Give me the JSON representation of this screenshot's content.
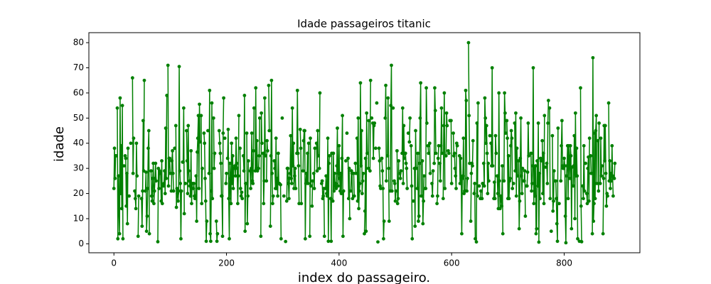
{
  "chart_data": {
    "type": "line",
    "title": "Idade passageiros titanic",
    "x_label": "index do passageiro.",
    "y_label": "idade",
    "color": "#008000",
    "markers": true,
    "xlim": [
      -44.5,
      934.5
    ],
    "xticks": [
      0,
      200,
      400,
      600,
      800
    ],
    "ylim": [
      -3.56,
      83.98
    ],
    "yticks": [
      0,
      10,
      20,
      30,
      40,
      50,
      60,
      70,
      80
    ],
    "values": [
      22,
      38,
      26,
      35,
      35,
      null,
      54,
      2,
      27,
      14,
      4,
      58,
      20,
      39,
      14,
      55,
      2,
      null,
      31,
      null,
      35,
      34,
      15,
      28,
      8,
      38,
      null,
      19,
      null,
      null,
      40,
      null,
      null,
      66,
      28,
      42,
      null,
      21,
      18,
      14,
      40,
      27,
      null,
      3,
      19,
      null,
      null,
      null,
      null,
      18,
      7,
      21,
      49,
      29,
      65,
      null,
      21,
      28.5,
      5,
      11,
      22,
      38,
      45,
      4,
      null,
      null,
      29,
      19,
      17,
      26,
      32,
      16,
      21,
      26,
      32,
      25,
      null,
      null,
      0.83,
      30,
      22,
      29,
      null,
      28,
      17,
      33,
      16,
      null,
      23,
      24,
      29,
      20,
      46,
      26,
      59,
      null,
      71,
      23,
      34,
      34,
      28,
      null,
      21,
      33,
      37,
      28,
      21,
      null,
      38,
      null,
      47,
      14.5,
      22,
      20,
      17,
      21,
      70.5,
      29,
      24,
      2,
      21,
      null,
      32.5,
      32.5,
      54,
      12,
      null,
      24,
      null,
      45,
      33,
      20,
      47,
      29,
      25,
      23,
      19,
      37,
      16,
      24,
      null,
      22,
      24,
      19,
      18,
      19,
      27,
      9,
      36.5,
      42,
      51,
      22,
      55.5,
      40.5,
      null,
      51,
      16,
      30,
      null,
      null,
      44,
      40,
      26,
      17,
      1,
      9,
      null,
      45,
      null,
      28,
      61,
      4,
      1,
      21,
      56,
      18,
      null,
      50,
      30,
      36,
      null,
      null,
      9,
      1,
      4,
      null,
      null,
      45,
      40,
      36,
      32,
      19,
      19,
      3,
      44,
      58,
      null,
      42,
      null,
      24,
      28,
      null,
      34,
      45.5,
      18,
      2,
      32,
      26,
      16,
      40,
      24,
      35,
      22,
      30,
      null,
      31,
      27,
      42,
      32,
      30,
      16,
      27,
      51,
      null,
      38,
      22,
      19,
      20.5,
      18,
      null,
      35,
      29,
      59,
      5,
      24,
      null,
      44,
      8,
      19,
      33,
      null,
      null,
      29,
      22,
      30,
      44,
      25,
      24,
      37,
      54,
      null,
      29,
      62,
      30,
      41,
      29,
      null,
      30,
      35,
      50,
      null,
      3,
      52,
      40,
      null,
      36,
      16,
      25,
      58,
      35,
      null,
      25,
      41,
      37,
      null,
      63,
      45,
      null,
      7,
      35,
      65,
      28,
      16,
      19,
      null,
      33,
      30,
      22,
      42,
      22,
      26,
      19,
      36,
      24,
      24,
      null,
      23.5,
      2,
      null,
      50,
      null,
      null,
      19,
      null,
      null,
      0.92,
      null,
      17,
      30,
      30,
      24,
      18,
      26,
      28,
      43,
      26,
      24,
      54,
      31,
      40,
      22,
      27,
      30,
      22,
      null,
      36,
      61,
      36,
      31,
      16,
      null,
      45.5,
      38,
      16,
      null,
      null,
      29,
      41,
      45,
      45,
      2,
      24,
      28,
      25,
      36,
      24,
      40,
      null,
      3,
      42,
      23,
      null,
      15,
      25,
      null,
      28,
      22,
      38,
      null,
      null,
      40,
      29,
      45,
      35,
      null,
      30,
      60,
      null,
      null,
      24,
      25,
      18,
      19,
      22,
      3,
      null,
      22,
      27,
      20,
      19,
      42,
      1,
      32,
      35,
      null,
      18,
      1,
      36,
      null,
      17,
      36,
      21,
      28,
      23,
      24,
      22,
      31,
      46,
      23,
      28,
      39,
      26,
      21,
      28,
      20,
      34,
      51,
      3,
      21,
      null,
      null,
      null,
      33,
      null,
      44,
      null,
      34,
      18,
      30,
      10,
      null,
      21,
      29,
      28,
      18,
      null,
      28,
      19,
      null,
      32,
      28,
      null,
      42,
      17,
      50,
      14,
      21,
      24,
      64,
      31,
      45,
      20,
      25,
      28,
      null,
      4,
      13,
      34,
      5,
      52,
      36,
      null,
      30,
      49,
      null,
      29,
      65,
      null,
      50,
      null,
      48,
      34,
      47,
      48,
      null,
      38,
      null,
      56,
      null,
      0.75,
      null,
      38,
      33,
      23,
      22,
      null,
      34,
      29,
      22,
      2,
      9,
      null,
      50,
      63,
      25,
      null,
      35,
      58,
      30,
      9,
      null,
      21,
      55,
      71,
      21,
      null,
      54,
      null,
      25,
      24,
      17,
      21,
      null,
      37,
      16,
      18,
      33,
      null,
      28,
      26,
      29,
      null,
      36,
      54,
      24,
      47,
      34,
      null,
      36,
      32,
      30,
      22,
      null,
      44,
      null,
      40.5,
      50,
      null,
      39,
      23,
      2,
      null,
      17,
      null,
      30,
      7,
      45,
      30,
      null,
      22,
      36,
      9,
      11,
      32,
      50,
      64,
      19,
      null,
      33,
      8,
      17,
      27,
      null,
      22,
      22,
      62,
      48,
      null,
      39,
      36,
      null,
      40,
      28,
      null,
      null,
      24,
      19,
      29,
      null,
      32,
      62,
      53,
      36,
      null,
      16,
      19,
      34,
      39,
      null,
      32,
      25,
      39,
      54,
      36,
      null,
      18,
      47,
      60,
      22,
      null,
      35,
      52,
      47,
      null,
      37,
      36,
      null,
      49,
      null,
      49,
      24,
      null,
      null,
      44,
      35,
      36,
      30,
      27,
      22,
      40,
      39,
      null,
      null,
      null,
      35,
      24,
      34,
      26,
      4,
      26,
      27,
      42,
      20,
      21,
      21,
      61,
      57,
      21,
      26,
      null,
      80,
      51,
      32,
      null,
      9,
      28,
      32,
      31,
      41,
      null,
      20,
      24,
      2,
      null,
      0.75,
      48,
      19,
      56,
      null,
      23,
      null,
      18,
      21,
      null,
      18,
      24,
      null,
      32,
      23,
      58,
      50,
      40,
      47,
      36,
      20,
      32,
      25,
      null,
      43,
      null,
      40,
      31,
      70,
      31,
      null,
      18,
      24.5,
      18,
      43,
      36,
      null,
      27,
      20,
      14,
      60,
      25,
      14,
      19,
      18,
      15,
      31,
      4,
      null,
      25,
      60,
      52,
      44,
      null,
      49,
      42,
      18,
      35,
      18,
      25,
      26,
      39,
      45,
      42,
      22,
      null,
      24,
      null,
      48,
      29,
      52,
      19,
      38,
      27,
      null,
      33,
      6,
      17,
      34,
      50,
      27,
      20,
      30,
      null,
      25,
      25,
      29,
      11,
      null,
      23,
      23,
      28.5,
      48,
      35,
      null,
      null,
      null,
      36,
      21,
      24,
      31,
      70,
      16,
      30,
      19,
      31,
      4,
      6,
      33,
      23,
      48,
      0.67,
      28,
      18,
      34,
      33,
      null,
      41,
      20,
      36,
      16,
      51,
      null,
      30.5,
      null,
      32,
      24,
      48,
      57,
      null,
      54,
      18,
      null,
      5,
      null,
      43,
      13,
      17,
      29,
      null,
      25,
      25,
      18,
      8,
      1,
      46,
      null,
      16,
      null,
      null,
      25,
      39,
      49,
      31,
      30,
      30,
      34,
      31,
      11,
      0.42,
      27,
      31,
      39,
      18,
      39,
      33,
      26,
      39,
      35,
      6,
      30.5,
      null,
      23,
      31,
      43,
      10,
      52,
      27,
      38,
      27,
      2,
      null,
      null,
      1,
      null,
      62,
      15,
      0.83,
      null,
      23,
      18,
      39,
      21,
      null,
      32,
      null,
      20,
      16,
      30,
      34.5,
      17,
      42,
      null,
      35,
      28,
      null,
      4,
      74,
      9,
      16,
      44,
      18,
      45,
      51,
      24,
      null,
      41,
      21,
      48,
      null,
      24,
      42,
      27,
      31,
      null,
      4,
      26,
      47,
      33,
      47,
      28,
      15,
      20,
      19,
      null,
      56,
      25,
      33,
      22,
      28,
      25,
      39,
      27,
      19,
      null,
      26,
      32
    ]
  }
}
